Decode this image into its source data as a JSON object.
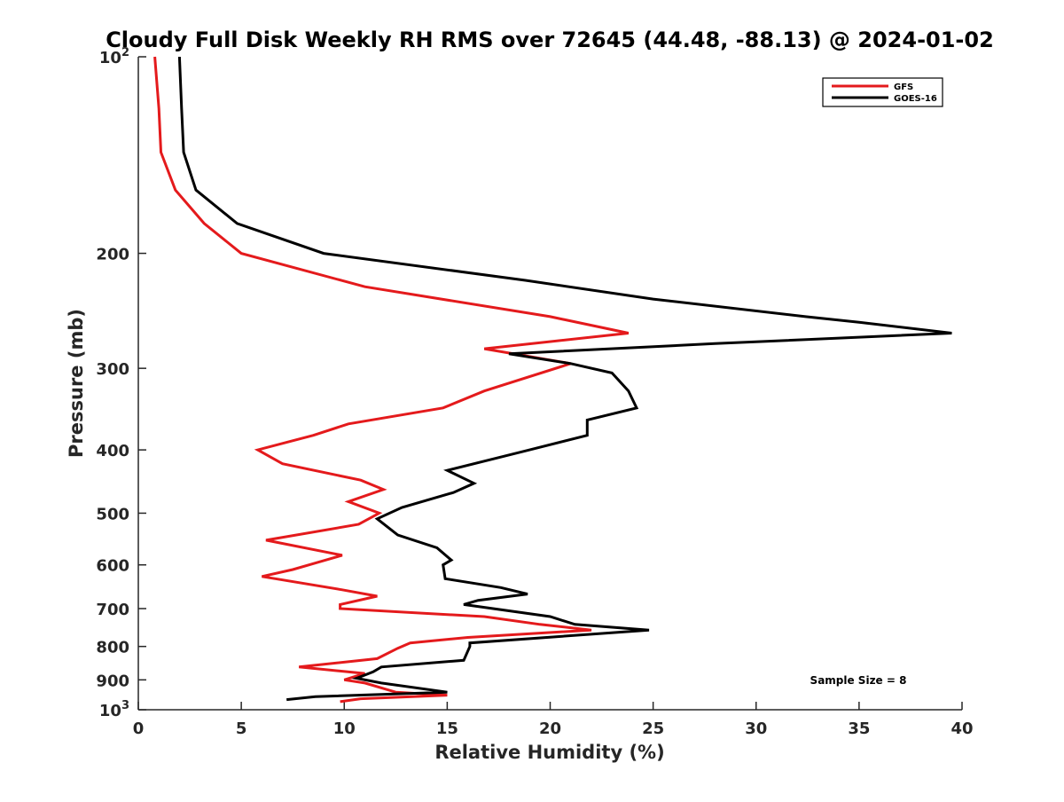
{
  "chart_data": {
    "type": "line",
    "title": "Cloudy Full Disk Weekly RH RMS over 72645 (44.48, -88.13) @ 2024-01-02",
    "xlabel": "Relative Humidity (%)",
    "ylabel": "Pressure (mb)",
    "xlim": [
      0,
      40
    ],
    "ylim": [
      100,
      1000
    ],
    "y_scale": "log",
    "y_inverted": true,
    "grid": false,
    "legend_position": "top-right",
    "x_ticks": [
      "0",
      "5",
      "10",
      "15",
      "20",
      "25",
      "30",
      "35",
      "40"
    ],
    "x_tick_values": [
      0,
      5,
      10,
      15,
      20,
      25,
      30,
      35,
      40
    ],
    "y_ticks": [
      {
        "value": 100,
        "base": "10",
        "exp": "2"
      },
      {
        "value": 200,
        "label": "200"
      },
      {
        "value": 300,
        "label": "300"
      },
      {
        "value": 400,
        "label": "400"
      },
      {
        "value": 500,
        "label": "500"
      },
      {
        "value": 600,
        "label": "600"
      },
      {
        "value": 700,
        "label": "700"
      },
      {
        "value": 800,
        "label": "800"
      },
      {
        "value": 900,
        "label": "900"
      },
      {
        "value": 1000,
        "base": "10",
        "exp": "3"
      }
    ],
    "annotation": "Sample Size = 8",
    "series": [
      {
        "name": "GFS",
        "color": "#e41a1c",
        "points": [
          [
            0.8,
            100
          ],
          [
            1.0,
            120
          ],
          [
            1.1,
            140
          ],
          [
            1.8,
            160
          ],
          [
            3.2,
            180
          ],
          [
            5.0,
            200
          ],
          [
            11.0,
            225
          ],
          [
            20.0,
            250
          ],
          [
            23.8,
            265
          ],
          [
            16.8,
            280
          ],
          [
            21.0,
            295
          ],
          [
            16.8,
            325
          ],
          [
            14.8,
            345
          ],
          [
            10.2,
            365
          ],
          [
            8.5,
            380
          ],
          [
            5.8,
            400
          ],
          [
            7.0,
            420
          ],
          [
            10.8,
            445
          ],
          [
            11.9,
            460
          ],
          [
            10.2,
            480
          ],
          [
            11.7,
            500
          ],
          [
            10.7,
            520
          ],
          [
            6.2,
            550
          ],
          [
            9.9,
            580
          ],
          [
            7.5,
            610
          ],
          [
            6.0,
            625
          ],
          [
            9.9,
            655
          ],
          [
            11.6,
            670
          ],
          [
            9.8,
            690
          ],
          [
            9.8,
            700
          ],
          [
            16.8,
            720
          ],
          [
            19.5,
            740
          ],
          [
            22.0,
            755
          ],
          [
            16.0,
            775
          ],
          [
            13.2,
            790
          ],
          [
            12.6,
            805
          ],
          [
            11.6,
            835
          ],
          [
            7.8,
            860
          ],
          [
            11.0,
            880
          ],
          [
            10.0,
            900
          ],
          [
            11.0,
            910
          ],
          [
            12.5,
            940
          ],
          [
            15.0,
            950
          ],
          [
            10.8,
            962
          ],
          [
            9.8,
            972
          ]
        ]
      },
      {
        "name": "GOES-16",
        "color": "#000000",
        "points": [
          [
            2.0,
            100
          ],
          [
            2.1,
            120
          ],
          [
            2.2,
            140
          ],
          [
            2.8,
            160
          ],
          [
            4.8,
            180
          ],
          [
            9.0,
            200
          ],
          [
            18.8,
            220
          ],
          [
            25.0,
            235
          ],
          [
            32.4,
            250
          ],
          [
            35.0,
            255
          ],
          [
            39.5,
            265
          ],
          [
            28.0,
            275
          ],
          [
            18.0,
            285
          ],
          [
            21.0,
            295
          ],
          [
            23.0,
            305
          ],
          [
            23.8,
            325
          ],
          [
            24.2,
            345
          ],
          [
            21.8,
            360
          ],
          [
            21.8,
            380
          ],
          [
            19.0,
            400
          ],
          [
            15.0,
            430
          ],
          [
            16.3,
            450
          ],
          [
            15.3,
            465
          ],
          [
            12.8,
            490
          ],
          [
            11.6,
            510
          ],
          [
            12.6,
            540
          ],
          [
            14.5,
            565
          ],
          [
            15.2,
            590
          ],
          [
            14.8,
            600
          ],
          [
            14.9,
            630
          ],
          [
            17.6,
            650
          ],
          [
            18.9,
            665
          ],
          [
            16.5,
            680
          ],
          [
            15.8,
            690
          ],
          [
            20.0,
            720
          ],
          [
            21.2,
            740
          ],
          [
            24.8,
            755
          ],
          [
            16.1,
            790
          ],
          [
            16.1,
            800
          ],
          [
            15.8,
            840
          ],
          [
            11.8,
            860
          ],
          [
            11.4,
            875
          ],
          [
            10.6,
            895
          ],
          [
            11.8,
            910
          ],
          [
            15.0,
            940
          ],
          [
            8.6,
            955
          ],
          [
            7.2,
            965
          ]
        ]
      }
    ]
  }
}
